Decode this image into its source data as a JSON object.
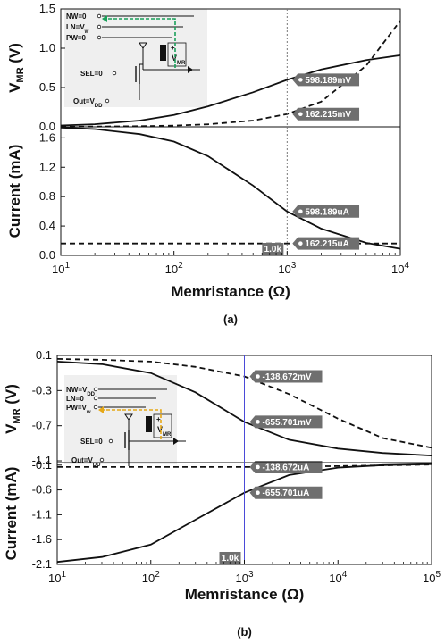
{
  "chart_data": [
    {
      "type": "line",
      "caption": "(a)",
      "xlabel": "Memristance (Ω)",
      "xscale": "log",
      "xlim": [
        10,
        10000
      ],
      "x_ticks": [
        {
          "base": "10",
          "exp": "1"
        },
        {
          "base": "10",
          "exp": "2"
        },
        {
          "base": "10",
          "exp": "3"
        },
        {
          "base": "10",
          "exp": "4"
        }
      ],
      "marker": {
        "x": 1000,
        "label": "1.0k",
        "color": "#777777"
      },
      "panels": [
        {
          "id": "top",
          "ylabel": {
            "main": "V",
            "sub": "MR",
            "unit": " (V)"
          },
          "ylim": [
            0,
            1.5
          ],
          "y_ticks": [
            "0.0",
            "0.5",
            "1.0",
            "1.5"
          ],
          "series": [
            {
              "style": "solid",
              "x": [
                10,
                20,
                50,
                100,
                200,
                500,
                1000,
                2000,
                5000,
                10000
              ],
              "y": [
                0.017,
                0.033,
                0.08,
                0.15,
                0.26,
                0.44,
                0.598,
                0.73,
                0.85,
                0.91
              ]
            },
            {
              "style": "dashed",
              "x": [
                10,
                20,
                50,
                100,
                200,
                500,
                1000,
                2000,
                5000,
                10000
              ],
              "y": [
                0.002,
                0.003,
                0.008,
                0.016,
                0.032,
                0.08,
                0.162,
                0.32,
                0.78,
                1.35
              ]
            }
          ],
          "callouts": [
            {
              "x": 1000,
              "y": 0.598,
              "text": "598.189mV"
            },
            {
              "x": 1000,
              "y": 0.162,
              "text": "162.215mV"
            }
          ]
        },
        {
          "id": "bottom",
          "ylabel": {
            "main": "Current (mA)",
            "sub": "",
            "unit": ""
          },
          "ylim": [
            0,
            1.75
          ],
          "y_ticks": [
            "0.0",
            "0.4",
            "0.8",
            "1.2",
            "1.6"
          ],
          "series": [
            {
              "style": "solid",
              "x": [
                10,
                20,
                50,
                100,
                200,
                500,
                1000,
                2000,
                5000,
                10000
              ],
              "y": [
                1.74,
                1.72,
                1.65,
                1.55,
                1.35,
                0.95,
                0.598,
                0.365,
                0.17,
                0.09
              ]
            },
            {
              "style": "dashed",
              "x": [
                10,
                100,
                1000,
                10000
              ],
              "y": [
                0.162,
                0.162,
                0.162,
                0.162
              ]
            }
          ],
          "callouts": [
            {
              "x": 1000,
              "y": 0.598,
              "text": "598.189uA"
            },
            {
              "x": 1000,
              "y": 0.162,
              "text": "162.215uA"
            }
          ]
        }
      ],
      "inset": {
        "labels": [
          "NW=0",
          "LN=V",
          "PW=0",
          "SEL=0",
          "Out=V"
        ],
        "label_subs": [
          "",
          "w",
          "",
          "",
          "DD"
        ],
        "vmr": {
          "main": "V",
          "sub": "MR"
        },
        "arrow_color": "#1aa05a"
      }
    },
    {
      "type": "line",
      "caption": "(b)",
      "xlabel": "Memristance (Ω)",
      "xscale": "log",
      "xlim": [
        10,
        100000
      ],
      "x_ticks": [
        {
          "base": "10",
          "exp": "1"
        },
        {
          "base": "10",
          "exp": "2"
        },
        {
          "base": "10",
          "exp": "3"
        },
        {
          "base": "10",
          "exp": "4"
        },
        {
          "base": "10",
          "exp": "5"
        }
      ],
      "marker": {
        "x": 1000,
        "label": "1.0k",
        "color": "#4a4ad8"
      },
      "panels": [
        {
          "id": "top",
          "ylabel": {
            "main": "V",
            "sub": "MR",
            "unit": " (V)"
          },
          "ylim": [
            -1.12,
            0.1
          ],
          "y_ticks": [
            "0.1",
            "-0.3",
            "-0.7",
            "-1.1"
          ],
          "series": [
            {
              "style": "solid",
              "x": [
                10,
                30,
                100,
                300,
                1000,
                3000,
                10000,
                30000,
                100000
              ],
              "y": [
                0.03,
                0.0,
                -0.1,
                -0.32,
                -0.656,
                -0.86,
                -0.96,
                -1.01,
                -1.04
              ]
            },
            {
              "style": "dashed",
              "x": [
                10,
                30,
                100,
                300,
                1000,
                3000,
                10000,
                30000,
                100000
              ],
              "y": [
                0.06,
                0.05,
                0.03,
                -0.03,
                -0.139,
                -0.34,
                -0.62,
                -0.84,
                -0.95
              ]
            }
          ],
          "callouts": [
            {
              "x": 1000,
              "y": -0.139,
              "text": "-138.672mV"
            },
            {
              "x": 1000,
              "y": -0.656,
              "text": "-655.701mV"
            }
          ]
        },
        {
          "id": "bottom",
          "ylabel": {
            "main": "Current (mA)",
            "sub": "",
            "unit": ""
          },
          "ylim": [
            -2.1,
            -0.05
          ],
          "y_ticks": [
            "-0.1",
            "-0.6",
            "-1.1",
            "-1.6",
            "-2.1"
          ],
          "series": [
            {
              "style": "solid",
              "x": [
                10,
                30,
                100,
                300,
                1000,
                3000,
                10000,
                30000,
                100000
              ],
              "y": [
                -2.05,
                -1.95,
                -1.7,
                -1.2,
                -0.656,
                -0.3,
                -0.15,
                -0.1,
                -0.08
              ]
            },
            {
              "style": "dashed",
              "x": [
                10,
                100,
                1000,
                10000,
                100000
              ],
              "y": [
                -0.139,
                -0.139,
                -0.139,
                -0.12,
                -0.09
              ]
            }
          ],
          "callouts": [
            {
              "x": 1000,
              "y": -0.139,
              "text": "-138.672uA"
            },
            {
              "x": 1000,
              "y": -0.656,
              "text": "-655.701uA"
            }
          ]
        }
      ],
      "inset": {
        "labels": [
          "NW=V",
          "LN=0",
          "PW=V",
          "SEL=0",
          "Out=V"
        ],
        "label_subs": [
          "DD",
          "",
          "w",
          "",
          "DD"
        ],
        "vmr": {
          "main": "V",
          "sub": "MR"
        },
        "arrow_color": "#e6a817"
      }
    }
  ]
}
